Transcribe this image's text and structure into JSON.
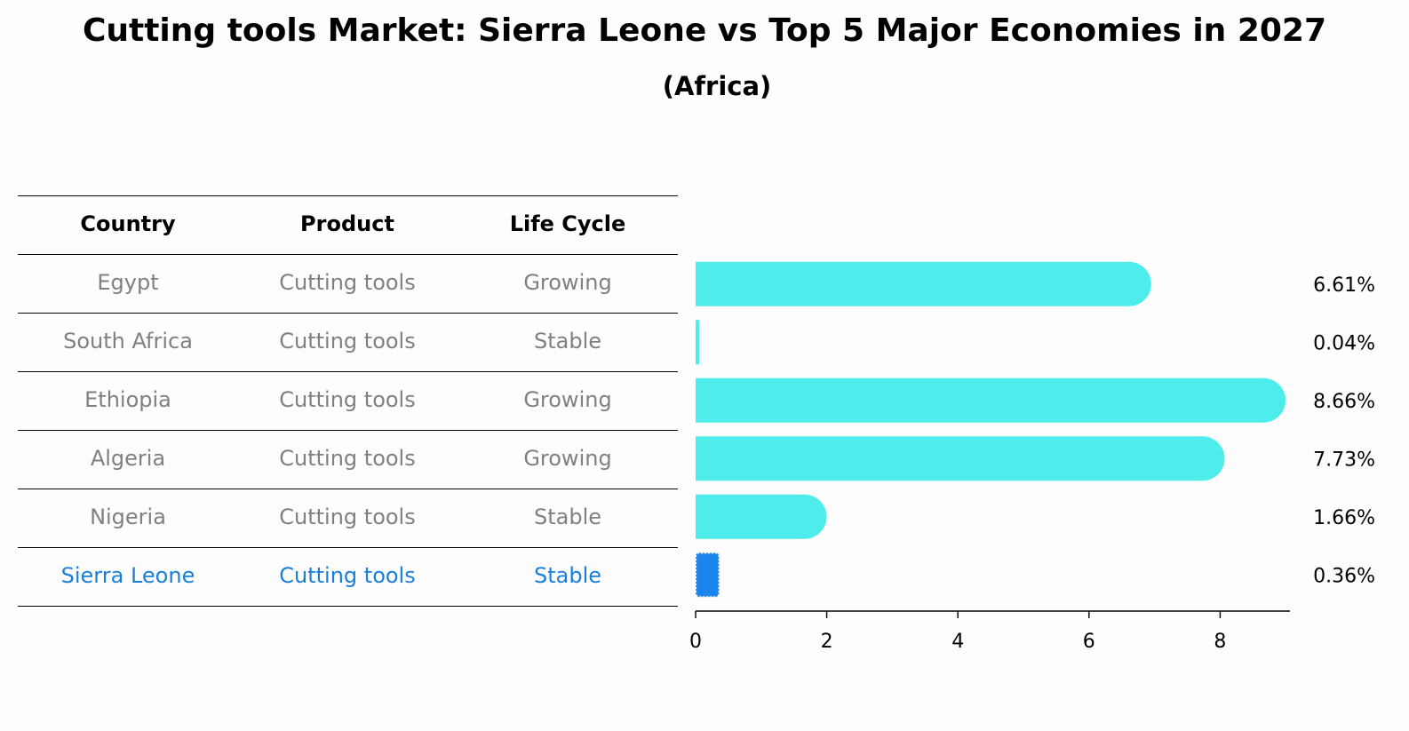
{
  "title": "Cutting tools Market: Sierra Leone vs Top 5 Major Economies in 2027",
  "subtitle": "(Africa)",
  "table": {
    "headers": [
      "Country",
      "Product",
      "Life Cycle"
    ],
    "rows": [
      {
        "country": "Egypt",
        "product": "Cutting tools",
        "life_cycle": "Growing"
      },
      {
        "country": "South Africa",
        "product": "Cutting tools",
        "life_cycle": "Stable"
      },
      {
        "country": "Ethiopia",
        "product": "Cutting tools",
        "life_cycle": "Growing"
      },
      {
        "country": "Algeria",
        "product": "Cutting tools",
        "life_cycle": "Growing"
      },
      {
        "country": "Nigeria",
        "product": "Cutting tools",
        "life_cycle": "Stable"
      },
      {
        "country": "Sierra Leone",
        "product": "Cutting tools",
        "life_cycle": "Stable"
      }
    ],
    "highlight_row": "Sierra Leone"
  },
  "chart_data": {
    "type": "bar",
    "orientation": "horizontal",
    "categories": [
      "Egypt",
      "South Africa",
      "Ethiopia",
      "Algeria",
      "Nigeria",
      "Sierra Leone"
    ],
    "values": [
      6.61,
      0.04,
      8.66,
      7.73,
      1.66,
      0.36
    ],
    "value_labels": [
      "6.61%",
      "0.04%",
      "8.66%",
      "7.73%",
      "1.66%",
      "0.36%"
    ],
    "xticks": [
      0,
      2,
      4,
      6,
      8
    ],
    "xlim": [
      0,
      9.1
    ],
    "grid": false,
    "colors": {
      "default": "#4eecea",
      "highlight": "#1a85ec",
      "highlight_edge": "#3a8fe0"
    }
  }
}
